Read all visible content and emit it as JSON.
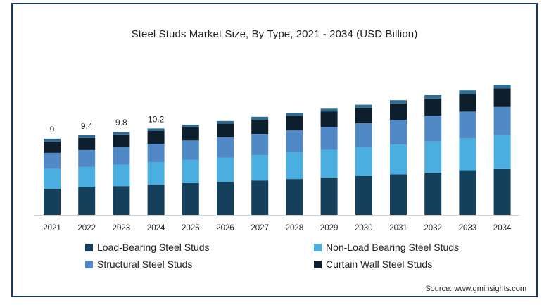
{
  "chart_data": {
    "type": "stacked-bar",
    "title": "Steel Studs Market Size, By Type, 2021 - 2034 (USD Billion)",
    "categories": [
      "2021",
      "2022",
      "2023",
      "2024",
      "2025",
      "2026",
      "2027",
      "2028",
      "2029",
      "2030",
      "2031",
      "2032",
      "2033",
      "2034"
    ],
    "series": [
      {
        "name": "Load-Bearing Steel Studs",
        "color": "#14405c",
        "values": [
          3.1,
          3.26,
          3.4,
          3.56,
          3.75,
          3.9,
          4.06,
          4.24,
          4.43,
          4.6,
          4.8,
          5.0,
          5.2,
          5.43
        ]
      },
      {
        "name": "Non-Load Bearing Steel Studs",
        "color": "#4aaee0",
        "values": [
          2.33,
          2.44,
          2.55,
          2.65,
          2.75,
          2.85,
          3.0,
          3.13,
          3.27,
          3.4,
          3.52,
          3.68,
          3.82,
          4.0
        ]
      },
      {
        "name": "Structural Steel Studs",
        "color": "#5189c6",
        "values": [
          1.9,
          1.97,
          2.07,
          2.2,
          2.3,
          2.4,
          2.5,
          2.6,
          2.7,
          2.8,
          2.92,
          3.05,
          3.18,
          3.32
        ]
      },
      {
        "name": "Curtain Wall Steel Studs",
        "color": "#0d1e2c",
        "values": [
          1.35,
          1.42,
          1.48,
          1.5,
          1.55,
          1.62,
          1.7,
          1.75,
          1.8,
          1.86,
          1.94,
          2.02,
          2.1,
          2.2
        ]
      },
      {
        "name": "Top cap",
        "color": "#2d6b95",
        "values": [
          0.32,
          0.32,
          0.31,
          0.3,
          0.3,
          0.32,
          0.33,
          0.34,
          0.35,
          0.36,
          0.37,
          0.4,
          0.42,
          0.45
        ]
      }
    ],
    "data_labels": [
      "9",
      "9.4",
      "9.8",
      "10.2",
      "",
      "",
      "",
      "",
      "",
      "",
      "",
      "",
      "",
      ""
    ],
    "ylim": [
      0,
      16.9
    ],
    "grid": false,
    "legend_position": "bottom"
  },
  "legend": [
    {
      "label": "Load-Bearing Steel Studs",
      "color": "#14405c"
    },
    {
      "label": "Non-Load Bearing Steel Studs",
      "color": "#4aaee0"
    },
    {
      "label": "Structural Steel Studs",
      "color": "#5189c6"
    },
    {
      "label": "Curtain Wall Steel Studs",
      "color": "#0d1e2c"
    }
  ],
  "source": "Source: www.gminsights.com"
}
